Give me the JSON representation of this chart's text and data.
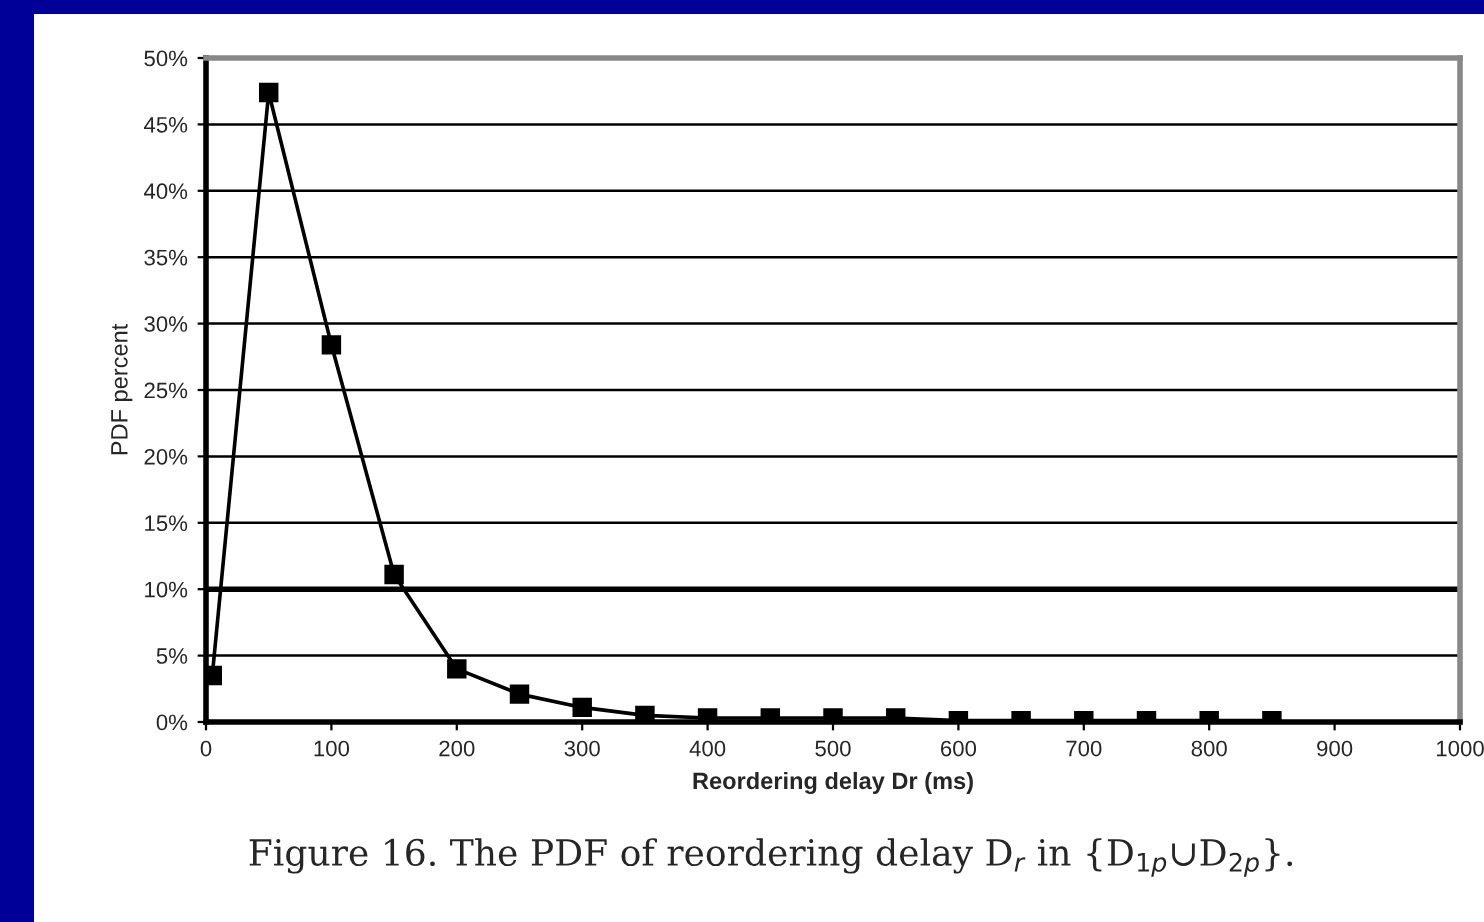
{
  "chart_data": {
    "type": "line",
    "xlabel": "Reordering delay Dr (ms)",
    "ylabel": "PDF percent",
    "x": [
      5,
      50,
      100,
      150,
      200,
      250,
      300,
      350,
      400,
      450,
      500,
      550,
      600,
      650,
      700,
      750,
      800,
      850
    ],
    "series": [
      {
        "color": "#000000",
        "values": [
          3.5,
          47.4,
          28.4,
          11.1,
          4.0,
          2.1,
          1.1,
          0.5,
          0.3,
          0.3,
          0.3,
          0.3,
          0.1,
          0.1,
          0.1,
          0.1,
          0.1,
          0.1
        ]
      }
    ],
    "xlim": [
      0,
      1000
    ],
    "xticks": [
      0,
      100,
      200,
      300,
      400,
      500,
      600,
      700,
      800,
      900,
      1000
    ],
    "ylim": [
      0,
      50
    ],
    "yticks": [
      {
        "value": 0,
        "label": "0%"
      },
      {
        "value": 5,
        "label": "5%"
      },
      {
        "value": 10,
        "label": "10%"
      },
      {
        "value": 15,
        "label": "15%"
      },
      {
        "value": 20,
        "label": "20%"
      },
      {
        "value": 25,
        "label": "25%"
      },
      {
        "value": 30,
        "label": "30%"
      },
      {
        "value": 35,
        "label": "35%"
      },
      {
        "value": 40,
        "label": "40%"
      },
      {
        "value": 45,
        "label": "45%"
      },
      {
        "value": 50,
        "label": "50%"
      }
    ],
    "ref_lines": [
      {
        "axis": "y",
        "value": 10,
        "color": "#000000"
      }
    ],
    "grid": "y",
    "marker": "square",
    "line_style": "solid",
    "annotations": [
      "Figure 16. The PDF of reordering delay D$_{r}$ in {D$_{1p}$∪D$_{2p}$}."
    ]
  }
}
